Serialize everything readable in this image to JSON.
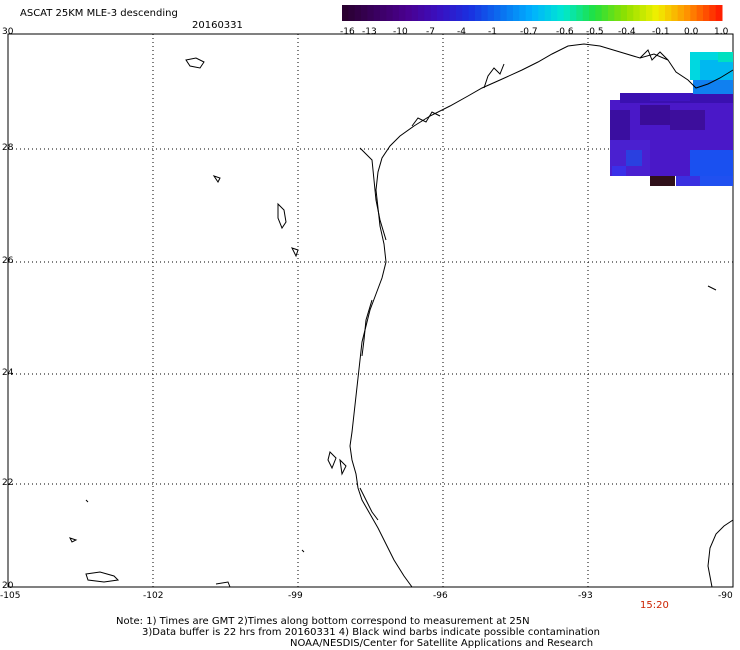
{
  "title": "ASCAT 25KM MLE-3 descending",
  "date": "20160331",
  "time_marker": "15:20",
  "notes": [
    "Note: 1) Times are GMT 2)Times along bottom correspond to measurement at 25N",
    "3)Data buffer is 22 hrs from 20160331 4) Black wind barbs indicate possible contamination",
    "NOAA/NESDIS/Center for Satellite Applications and Research"
  ],
  "axes": {
    "lat_labels": [
      "30",
      "28",
      "26",
      "24",
      "22",
      "20"
    ],
    "lon_labels": [
      "-105",
      "-102",
      "-99",
      "-96",
      "-93",
      "-90"
    ],
    "lat_range": [
      20,
      30
    ],
    "lon_range": [
      -105,
      -90
    ]
  },
  "colorbar": {
    "labels": [
      "-16",
      "-13",
      "-10",
      "-7",
      "-4",
      "-1",
      "-0.7",
      "-0.6",
      "-0.5",
      "-0.4",
      "-0.1",
      "0.0",
      "1.0"
    ],
    "colors": [
      "#2a0030",
      "#3a0060",
      "#4a0090",
      "#3a10c0",
      "#1a30e0",
      "#0a70f0",
      "#00b0ff",
      "#00e8d0",
      "#20e040",
      "#90e000",
      "#f0f000",
      "#ff9000",
      "#ff2000"
    ]
  },
  "map": {
    "land_color": "#ffffff",
    "coast_color": "#000000",
    "grid": "dotted",
    "data_swath_colors": [
      "#3a10b0",
      "#4a20d0",
      "#5020c8",
      "#2a40e0",
      "#1050f0",
      "#00c8e8",
      "#30101a"
    ]
  }
}
